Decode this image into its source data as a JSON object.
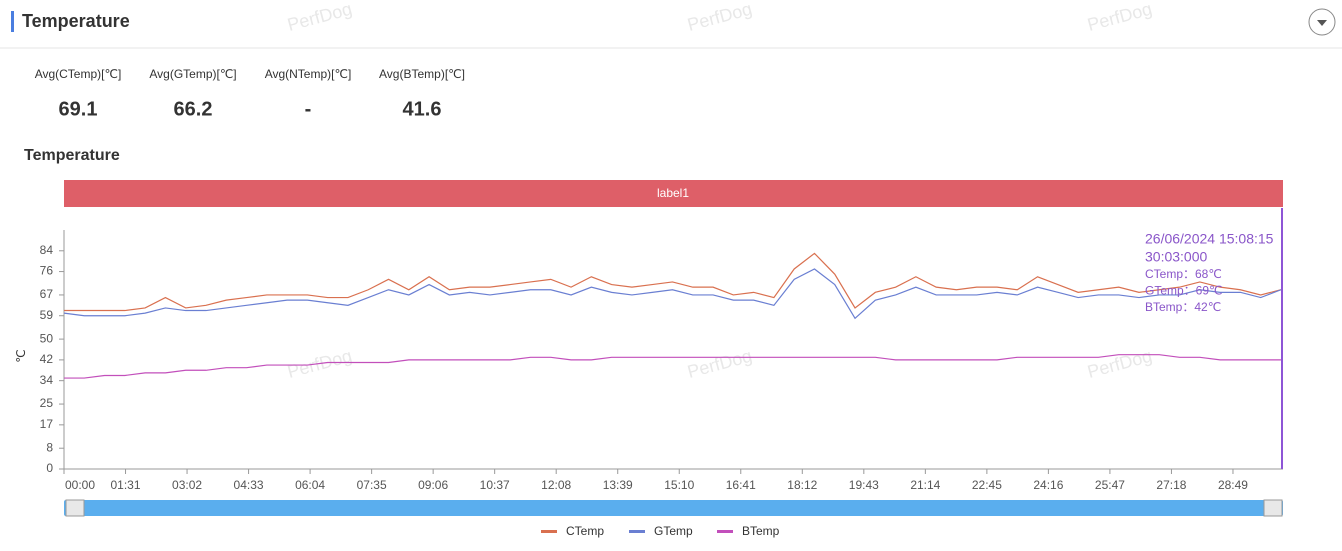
{
  "header": {
    "title": "Temperature"
  },
  "stats": [
    {
      "label": "Avg(CTemp)[℃]",
      "value": 69.1
    },
    {
      "label": "Avg(GTemp)[℃]",
      "value": 66.2
    },
    {
      "label": "Avg(NTemp)[℃]",
      "value": "-"
    },
    {
      "label": "Avg(BTemp)[℃]",
      "value": 41.6
    }
  ],
  "watermark": "PerfDog",
  "chart_data": {
    "type": "line",
    "title": "Temperature",
    "band_label": "label1",
    "y_label": "℃",
    "x": [
      0,
      30,
      60,
      90,
      120,
      150,
      180,
      210,
      240,
      270,
      300,
      330,
      360,
      390,
      420,
      450,
      480,
      510,
      540,
      570,
      600,
      630,
      660,
      690,
      720,
      750,
      780,
      810,
      840,
      870,
      900,
      930,
      960,
      990,
      1020,
      1050,
      1080,
      1110,
      1140,
      1170,
      1200,
      1230,
      1260,
      1290,
      1320,
      1350,
      1380,
      1410,
      1440,
      1470,
      1500,
      1530,
      1560,
      1590,
      1620,
      1650,
      1680,
      1710,
      1740,
      1770,
      1800
    ],
    "xlim": [
      0,
      1803
    ],
    "xticks": [
      {
        "value": 0,
        "label": "00:00"
      },
      {
        "value": 91,
        "label": "01:31"
      },
      {
        "value": 182,
        "label": "03:02"
      },
      {
        "value": 273,
        "label": "04:33"
      },
      {
        "value": 364,
        "label": "06:04"
      },
      {
        "value": 455,
        "label": "07:35"
      },
      {
        "value": 546,
        "label": "09:06"
      },
      {
        "value": 637,
        "label": "10:37"
      },
      {
        "value": 728,
        "label": "12:08"
      },
      {
        "value": 819,
        "label": "13:39"
      },
      {
        "value": 910,
        "label": "15:10"
      },
      {
        "value": 1001,
        "label": "16:41"
      },
      {
        "value": 1092,
        "label": "18:12"
      },
      {
        "value": 1183,
        "label": "19:43"
      },
      {
        "value": 1274,
        "label": "21:14"
      },
      {
        "value": 1365,
        "label": "22:45"
      },
      {
        "value": 1456,
        "label": "24:16"
      },
      {
        "value": 1547,
        "label": "25:47"
      },
      {
        "value": 1638,
        "label": "27:18"
      },
      {
        "value": 1729,
        "label": "28:49"
      }
    ],
    "ylim": [
      0,
      92
    ],
    "yticks": [
      0,
      8,
      17,
      25,
      34,
      42,
      50,
      59,
      67,
      76,
      84
    ],
    "legend": "bottom",
    "series": [
      {
        "name": "CTemp",
        "color": "#d9704f",
        "values": [
          61,
          61,
          61,
          61,
          62,
          66,
          62,
          63,
          65,
          66,
          67,
          67,
          67,
          66,
          66,
          69,
          73,
          69,
          74,
          69,
          70,
          70,
          71,
          72,
          73,
          70,
          74,
          71,
          70,
          71,
          72,
          70,
          70,
          67,
          68,
          66,
          77,
          83,
          75,
          62,
          68,
          70,
          74,
          70,
          69,
          70,
          70,
          69,
          74,
          71,
          68,
          69,
          70,
          68,
          69,
          70,
          72,
          70,
          69,
          67,
          69
        ]
      },
      {
        "name": "GTemp",
        "color": "#6a7fd2",
        "values": [
          60,
          59,
          59,
          59,
          60,
          62,
          61,
          61,
          62,
          63,
          64,
          65,
          65,
          64,
          63,
          66,
          69,
          67,
          71,
          67,
          68,
          67,
          68,
          69,
          69,
          67,
          70,
          68,
          67,
          68,
          69,
          67,
          67,
          65,
          65,
          63,
          73,
          77,
          71,
          58,
          65,
          67,
          70,
          67,
          67,
          67,
          68,
          67,
          70,
          68,
          66,
          67,
          67,
          66,
          67,
          67,
          69,
          68,
          68,
          66,
          69
        ]
      },
      {
        "name": "BTemp",
        "color": "#c24fbb",
        "values": [
          35,
          35,
          36,
          36,
          37,
          37,
          38,
          38,
          39,
          39,
          40,
          40,
          40,
          41,
          41,
          41,
          41,
          42,
          42,
          42,
          42,
          42,
          42,
          43,
          43,
          42,
          42,
          43,
          43,
          43,
          43,
          43,
          43,
          43,
          43,
          43,
          43,
          43,
          43,
          43,
          43,
          42,
          42,
          42,
          42,
          42,
          42,
          43,
          43,
          43,
          43,
          43,
          44,
          44,
          44,
          43,
          43,
          42,
          42,
          42,
          42
        ]
      }
    ],
    "tooltip": {
      "time": "26/06/2024 15:08:15",
      "elapsed": "30:03:000",
      "lines": [
        "CTemp：68℃",
        "GTemp：69℃",
        "BTemp：42℃"
      ]
    }
  }
}
